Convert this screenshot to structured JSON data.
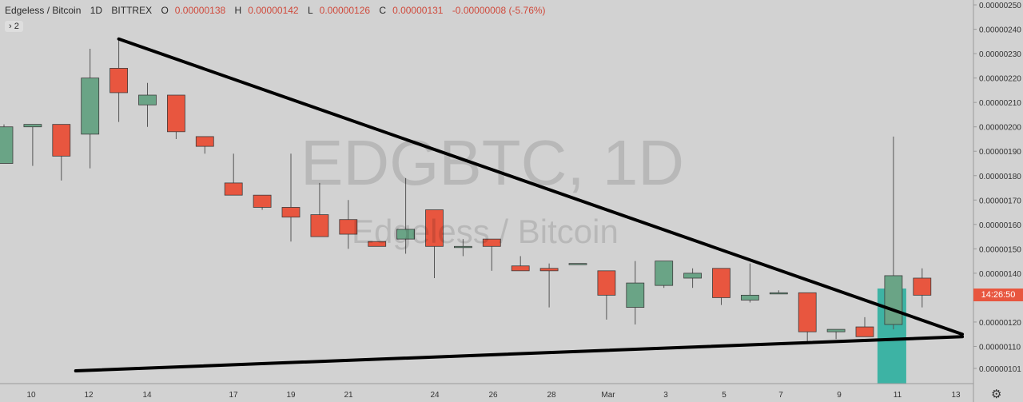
{
  "legend": {
    "symbol": "Edgeless / Bitcoin",
    "interval": "1D",
    "exchange": "BITTREX",
    "open_label": "O",
    "open": "0.00000138",
    "high_label": "H",
    "high": "0.00000142",
    "low_label": "L",
    "low": "0.00000126",
    "close_label": "C",
    "close": "0.00000131",
    "change": "-0.00000008 (-5.76%)"
  },
  "indicators_toggle": "› 2",
  "watermark": {
    "ticker": "EDGBTC, 1D",
    "description": "Edgeless / Bitcoin"
  },
  "countdown": "14:26:50",
  "settings_icon": "gear-icon",
  "colors": {
    "up": "#6aa486",
    "down": "#e8563f",
    "volume": "#3db3a4",
    "trendline": "#000000"
  },
  "chart_data": {
    "type": "candlestick",
    "x_ticks": [
      "10",
      "12",
      "14",
      "17",
      "19",
      "21",
      "24",
      "26",
      "28",
      "Mar",
      "3",
      "5",
      "7",
      "9",
      "11",
      "13"
    ],
    "y_ticks": [
      "0.00000101",
      "0.00000110",
      "0.00000120",
      "0.00000130",
      "0.00000140",
      "0.00000150",
      "0.00000160",
      "0.00000170",
      "0.00000180",
      "0.00000190",
      "0.00000200",
      "0.00000210",
      "0.00000220",
      "0.00000230",
      "0.00000240",
      "0.00000250"
    ],
    "ylim": [
      1e-06,
      2.51e-06
    ],
    "candles": [
      {
        "o": 1.85e-06,
        "h": 2.01e-06,
        "l": 1.85e-06,
        "c": 2e-06
      },
      {
        "o": 2e-06,
        "h": 2.01e-06,
        "l": 1.84e-06,
        "c": 2.01e-06
      },
      {
        "o": 2.01e-06,
        "h": 2.01e-06,
        "l": 1.78e-06,
        "c": 1.88e-06
      },
      {
        "o": 1.97e-06,
        "h": 2.32e-06,
        "l": 1.83e-06,
        "c": 2.2e-06
      },
      {
        "o": 2.24e-06,
        "h": 2.36e-06,
        "l": 2.02e-06,
        "c": 2.14e-06
      },
      {
        "o": 2.09e-06,
        "h": 2.18e-06,
        "l": 2e-06,
        "c": 2.13e-06
      },
      {
        "o": 2.13e-06,
        "h": 2.13e-06,
        "l": 1.95e-06,
        "c": 1.98e-06
      },
      {
        "o": 1.96e-06,
        "h": 1.96e-06,
        "l": 1.89e-06,
        "c": 1.92e-06
      },
      {
        "o": 1.77e-06,
        "h": 1.89e-06,
        "l": 1.72e-06,
        "c": 1.72e-06
      },
      {
        "o": 1.72e-06,
        "h": 1.72e-06,
        "l": 1.66e-06,
        "c": 1.67e-06
      },
      {
        "o": 1.67e-06,
        "h": 1.89e-06,
        "l": 1.53e-06,
        "c": 1.63e-06
      },
      {
        "o": 1.64e-06,
        "h": 1.77e-06,
        "l": 1.55e-06,
        "c": 1.55e-06
      },
      {
        "o": 1.62e-06,
        "h": 1.7e-06,
        "l": 1.5e-06,
        "c": 1.56e-06
      },
      {
        "o": 1.53e-06,
        "h": 1.53e-06,
        "l": 1.51e-06,
        "c": 1.51e-06
      },
      {
        "o": 1.54e-06,
        "h": 1.79e-06,
        "l": 1.48e-06,
        "c": 1.58e-06
      },
      {
        "o": 1.66e-06,
        "h": 1.66e-06,
        "l": 1.38e-06,
        "c": 1.51e-06
      },
      {
        "o": 1.51e-06,
        "h": 1.54e-06,
        "l": 1.47e-06,
        "c": 1.51e-06
      },
      {
        "o": 1.54e-06,
        "h": 1.54e-06,
        "l": 1.41e-06,
        "c": 1.51e-06
      },
      {
        "o": 1.43e-06,
        "h": 1.47e-06,
        "l": 1.41e-06,
        "c": 1.41e-06
      },
      {
        "o": 1.42e-06,
        "h": 1.44e-06,
        "l": 1.26e-06,
        "c": 1.41e-06
      },
      {
        "o": 1.44e-06,
        "h": 1.44e-06,
        "l": 1.44e-06,
        "c": 1.44e-06
      },
      {
        "o": 1.41e-06,
        "h": 1.41e-06,
        "l": 1.21e-06,
        "c": 1.31e-06
      },
      {
        "o": 1.26e-06,
        "h": 1.45e-06,
        "l": 1.19e-06,
        "c": 1.36e-06
      },
      {
        "o": 1.35e-06,
        "h": 1.45e-06,
        "l": 1.34e-06,
        "c": 1.45e-06
      },
      {
        "o": 1.38e-06,
        "h": 1.42e-06,
        "l": 1.34e-06,
        "c": 1.4e-06
      },
      {
        "o": 1.42e-06,
        "h": 1.42e-06,
        "l": 1.27e-06,
        "c": 1.3e-06
      },
      {
        "o": 1.29e-06,
        "h": 1.44e-06,
        "l": 1.28e-06,
        "c": 1.31e-06
      },
      {
        "o": 1.32e-06,
        "h": 1.33e-06,
        "l": 1.32e-06,
        "c": 1.32e-06
      },
      {
        "o": 1.32e-06,
        "h": 1.32e-06,
        "l": 1.11e-06,
        "c": 1.16e-06
      },
      {
        "o": 1.16e-06,
        "h": 1.17e-06,
        "l": 1.13e-06,
        "c": 1.17e-06
      },
      {
        "o": 1.18e-06,
        "h": 1.22e-06,
        "l": 1.14e-06,
        "c": 1.14e-06
      },
      {
        "o": 1.19e-06,
        "h": 1.96e-06,
        "l": 1.17e-06,
        "c": 1.39e-06
      },
      {
        "o": 1.38e-06,
        "h": 1.42e-06,
        "l": 1.26e-06,
        "c": 1.31e-06
      }
    ],
    "volume_spike_index": 31,
    "trendlines": [
      {
        "from": [
          4,
          2.36e-06
        ],
        "to": [
          33.4,
          1.15e-06
        ]
      },
      {
        "from": [
          2.5,
          1e-06
        ],
        "to": [
          33.4,
          1.14e-06
        ]
      }
    ]
  }
}
